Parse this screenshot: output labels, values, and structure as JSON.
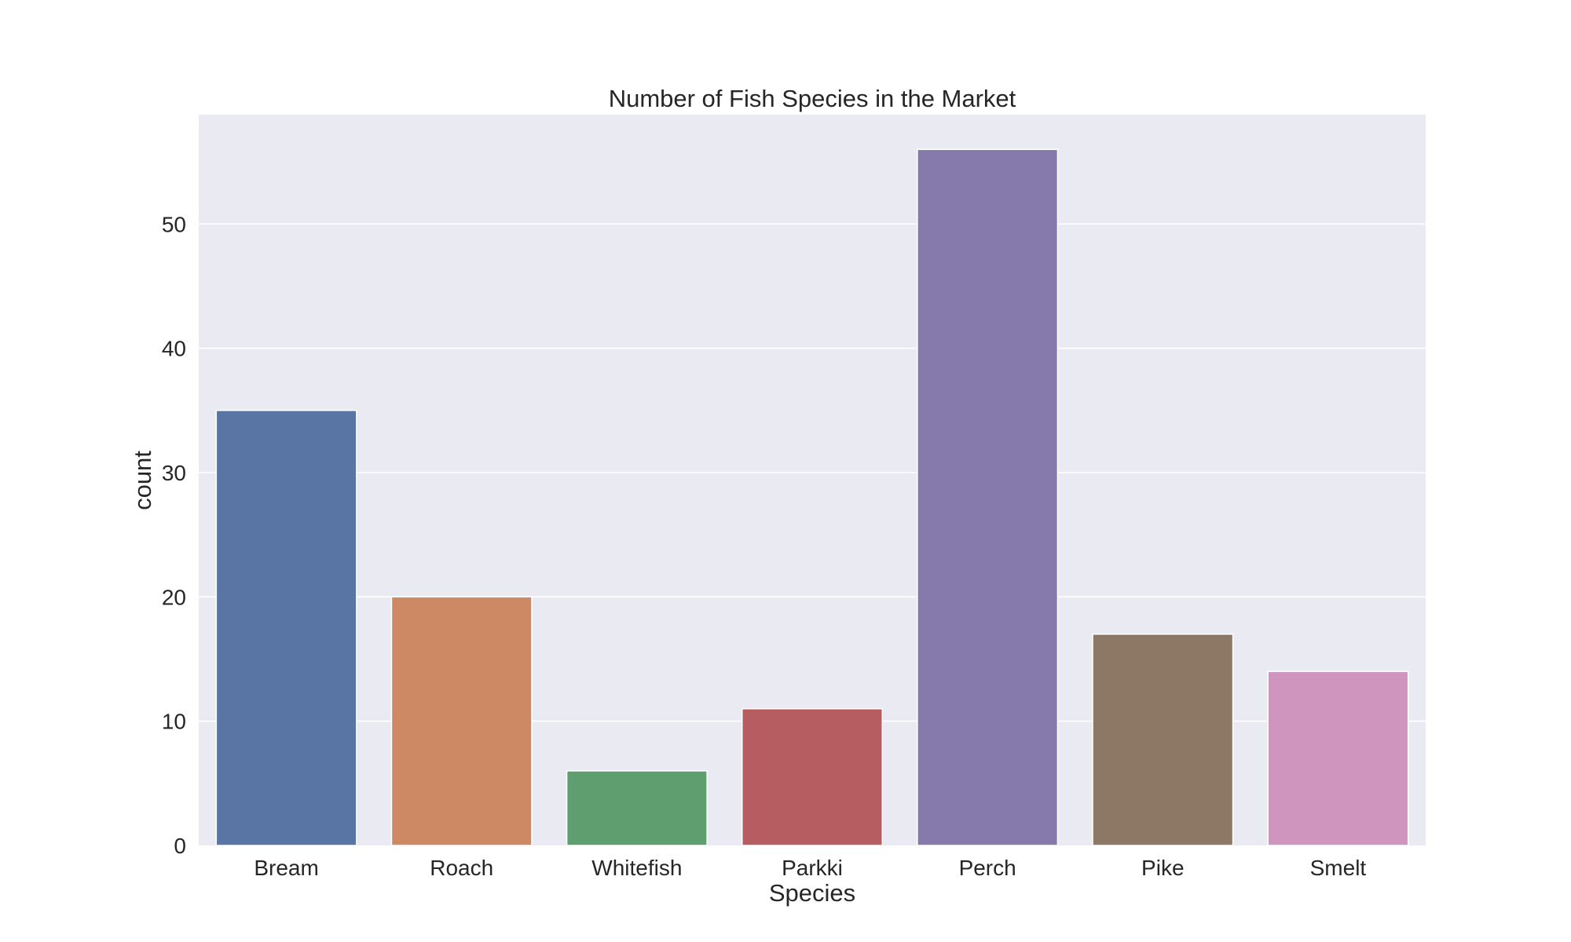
{
  "chart_data": {
    "type": "bar",
    "title": "Number of Fish Species in the Market",
    "xlabel": "Species",
    "ylabel": "count",
    "categories": [
      "Bream",
      "Roach",
      "Whitefish",
      "Parkki",
      "Perch",
      "Pike",
      "Smelt"
    ],
    "values": [
      35,
      20,
      6,
      11,
      56,
      17,
      14
    ],
    "colors": [
      "#5875a4",
      "#cc8963",
      "#5f9e6e",
      "#b55d60",
      "#857aab",
      "#8d7866",
      "#d095bf"
    ],
    "ylim": [
      0,
      58.8
    ],
    "yticks": [
      0,
      10,
      20,
      30,
      40,
      50
    ],
    "grid": true,
    "background": "#eaeaf2",
    "gridColor": "#ffffff"
  }
}
